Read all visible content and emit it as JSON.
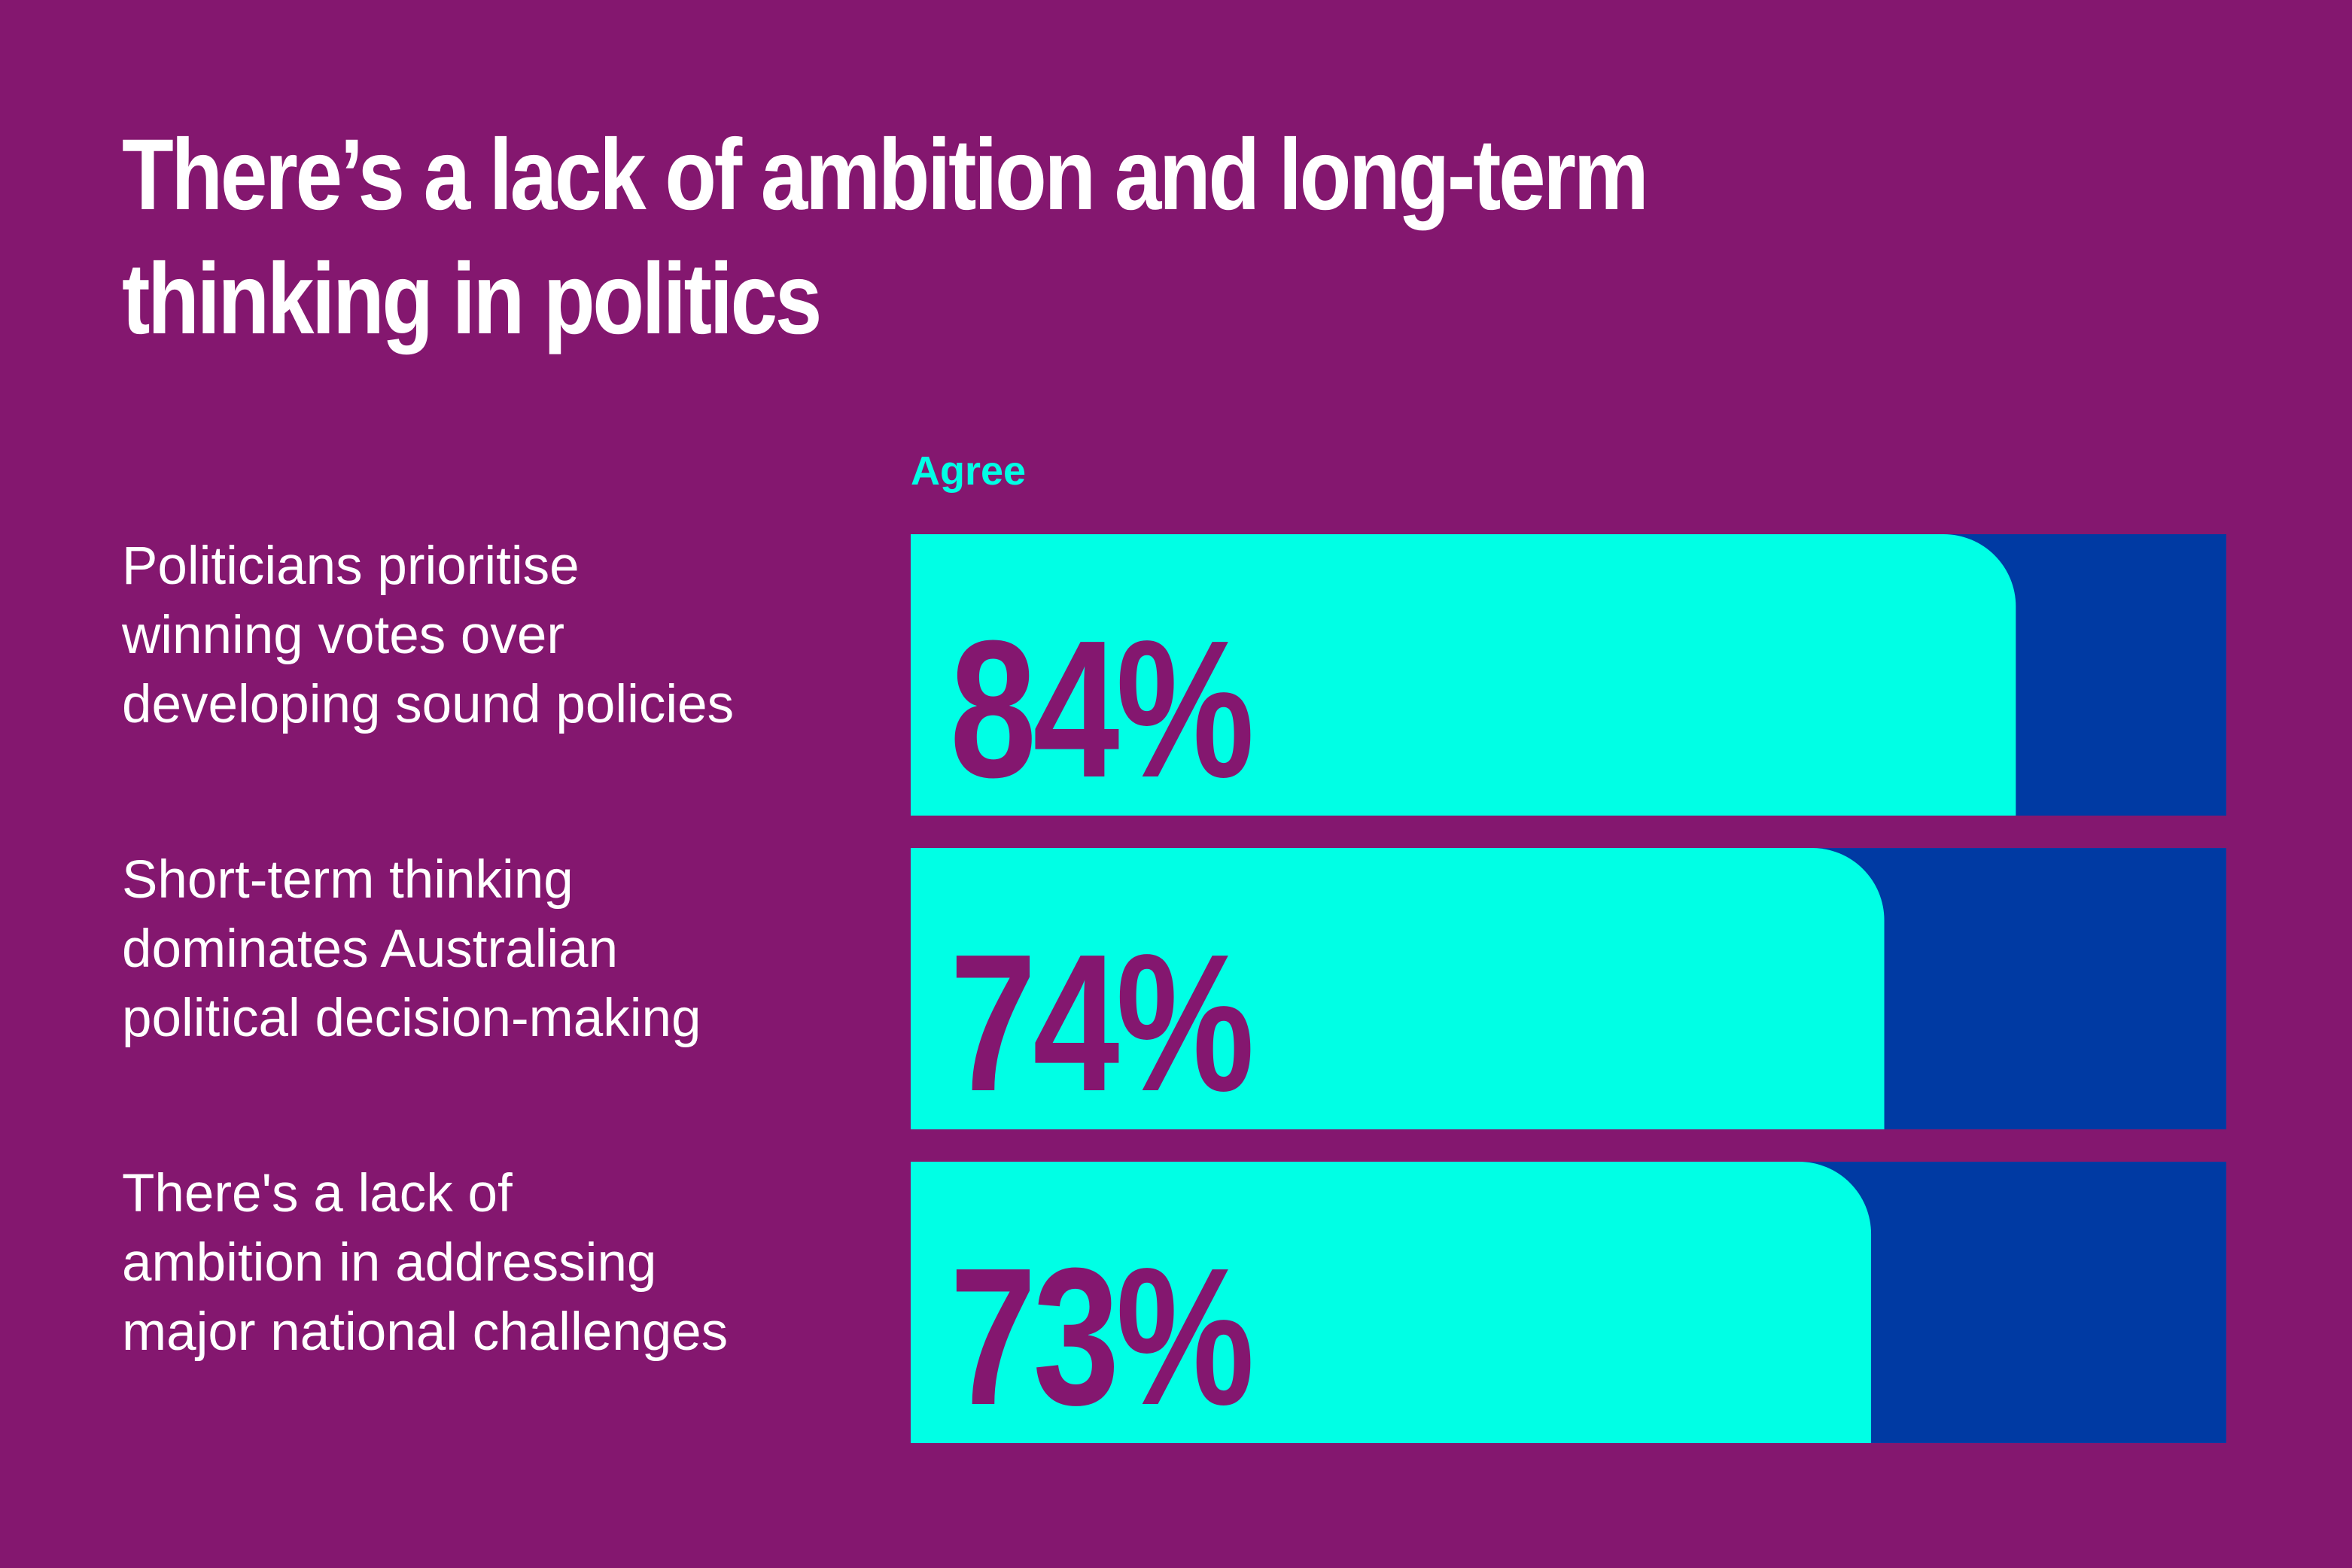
{
  "colors": {
    "background": "#84176F",
    "bar_fill": "#00FFE5",
    "bar_track": "#003AA3",
    "value_text": "#84176F",
    "legend_text": "#00FFE5",
    "text": "#FFFFFF"
  },
  "chart_data": {
    "type": "bar",
    "orientation": "horizontal",
    "title": "There’s a lack of ambition and long-term thinking in politics",
    "legend": [
      "Agree"
    ],
    "xlim": [
      0,
      100
    ],
    "categories": [
      "Politicians prioritise winning votes over developing sound policies",
      "Short-term thinking dominates Australian political decision-making",
      "There's a lack of ambition in addressing major national challenges"
    ],
    "category_lines": [
      [
        "Politicians prioritise",
        "winning votes over",
        "developing sound policies"
      ],
      [
        "Short-term thinking",
        "dominates Australian",
        "political decision-making"
      ],
      [
        "There's a lack of",
        "ambition in addressing",
        "major national challenges"
      ]
    ],
    "series": [
      {
        "name": "Agree",
        "values": [
          84,
          74,
          73
        ],
        "labels": [
          "84%",
          "74%",
          "73%"
        ]
      }
    ]
  }
}
